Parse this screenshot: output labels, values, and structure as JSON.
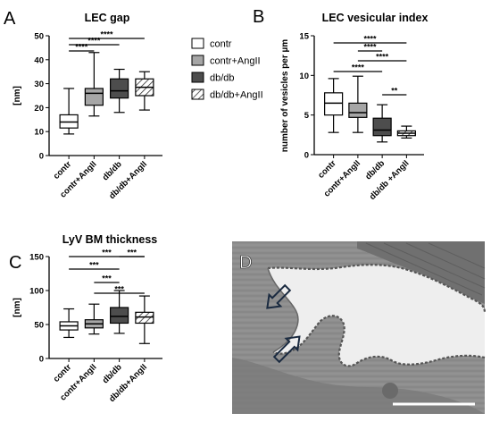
{
  "legend": {
    "entries": [
      {
        "label": "contr",
        "color": "#ffffff",
        "pattern": "none"
      },
      {
        "label": "contr+AngII",
        "color": "#a6a6a6",
        "pattern": "none"
      },
      {
        "label": "db/db",
        "color": "#4d4d4d",
        "pattern": "none"
      },
      {
        "label": "db/db+AngII",
        "color": "#ffffff",
        "pattern": "hatch"
      }
    ]
  },
  "panel_d": {
    "letter": "D",
    "description_icons": [
      "arrow-icon",
      "arrow-icon"
    ]
  },
  "chart_data": [
    {
      "type": "box",
      "panel": "A",
      "title": "LEC gap",
      "ylabel": "[nm]",
      "ylim": [
        0,
        50
      ],
      "yticks": [
        "0",
        "10",
        "20",
        "30",
        "40",
        "50"
      ],
      "categories": [
        "contr",
        "contr+AngII",
        "db/db",
        "db/db+AngII"
      ],
      "boxes": [
        {
          "min": 9,
          "q1": 11.5,
          "median": 14,
          "q3": 17,
          "max": 28
        },
        {
          "min": 16.5,
          "q1": 21,
          "median": 26,
          "q3": 28,
          "max": 43
        },
        {
          "min": 18,
          "q1": 24,
          "median": 27,
          "q3": 32,
          "max": 36
        },
        {
          "min": 19,
          "q1": 25,
          "median": 28.5,
          "q3": 32,
          "max": 35
        }
      ],
      "significance": [
        {
          "from": 0,
          "to": 1,
          "label": "****"
        },
        {
          "from": 0,
          "to": 2,
          "label": "****"
        },
        {
          "from": 0,
          "to": 3,
          "label": "****"
        }
      ]
    },
    {
      "type": "box",
      "panel": "B",
      "title": "LEC vesicular index",
      "ylabel": "number of vesicles per µm",
      "ylim": [
        0,
        15
      ],
      "yticks": [
        "0",
        "5",
        "10",
        "15"
      ],
      "categories": [
        "contr",
        "contr+AngII",
        "db/db",
        "db/db +AngII"
      ],
      "boxes": [
        {
          "min": 2.8,
          "q1": 5,
          "median": 6.5,
          "q3": 7.8,
          "max": 9.6
        },
        {
          "min": 2.8,
          "q1": 4.7,
          "median": 5.3,
          "q3": 6.5,
          "max": 9.9
        },
        {
          "min": 1.6,
          "q1": 2.4,
          "median": 3.1,
          "q3": 4.6,
          "max": 6.3
        },
        {
          "min": 2.1,
          "q1": 2.4,
          "median": 2.7,
          "q3": 3,
          "max": 3.6
        }
      ],
      "significance": [
        {
          "from": 0,
          "to": 2,
          "label": "****"
        },
        {
          "from": 0,
          "to": 3,
          "label": "****"
        },
        {
          "from": 1,
          "to": 2,
          "label": "****"
        },
        {
          "from": 1,
          "to": 3,
          "label": "****"
        },
        {
          "from": 2,
          "to": 3,
          "label": "**"
        }
      ]
    },
    {
      "type": "box",
      "panel": "C",
      "title": "LyV BM thickness",
      "ylabel": "[nm]",
      "ylim": [
        0,
        150
      ],
      "yticks": [
        "0",
        "50",
        "100",
        "150"
      ],
      "categories": [
        "contr",
        "contr+AngII",
        "db/db",
        "db/db+AngII"
      ],
      "boxes": [
        {
          "min": 31,
          "q1": 42,
          "median": 48,
          "q3": 54,
          "max": 73
        },
        {
          "min": 36,
          "q1": 45,
          "median": 51,
          "q3": 57,
          "max": 80
        },
        {
          "min": 37,
          "q1": 52,
          "median": 62,
          "q3": 75,
          "max": 100
        },
        {
          "min": 22,
          "q1": 52,
          "median": 61,
          "q3": 68,
          "max": 92
        }
      ],
      "significance": [
        {
          "from": 0,
          "to": 2,
          "label": "***"
        },
        {
          "from": 1,
          "to": 2,
          "label": "***"
        },
        {
          "from": 1,
          "to": 3,
          "label": "***"
        },
        {
          "from": 2,
          "to": 3,
          "label": "***"
        },
        {
          "from": 0,
          "to": 3,
          "label": "***"
        }
      ]
    }
  ]
}
